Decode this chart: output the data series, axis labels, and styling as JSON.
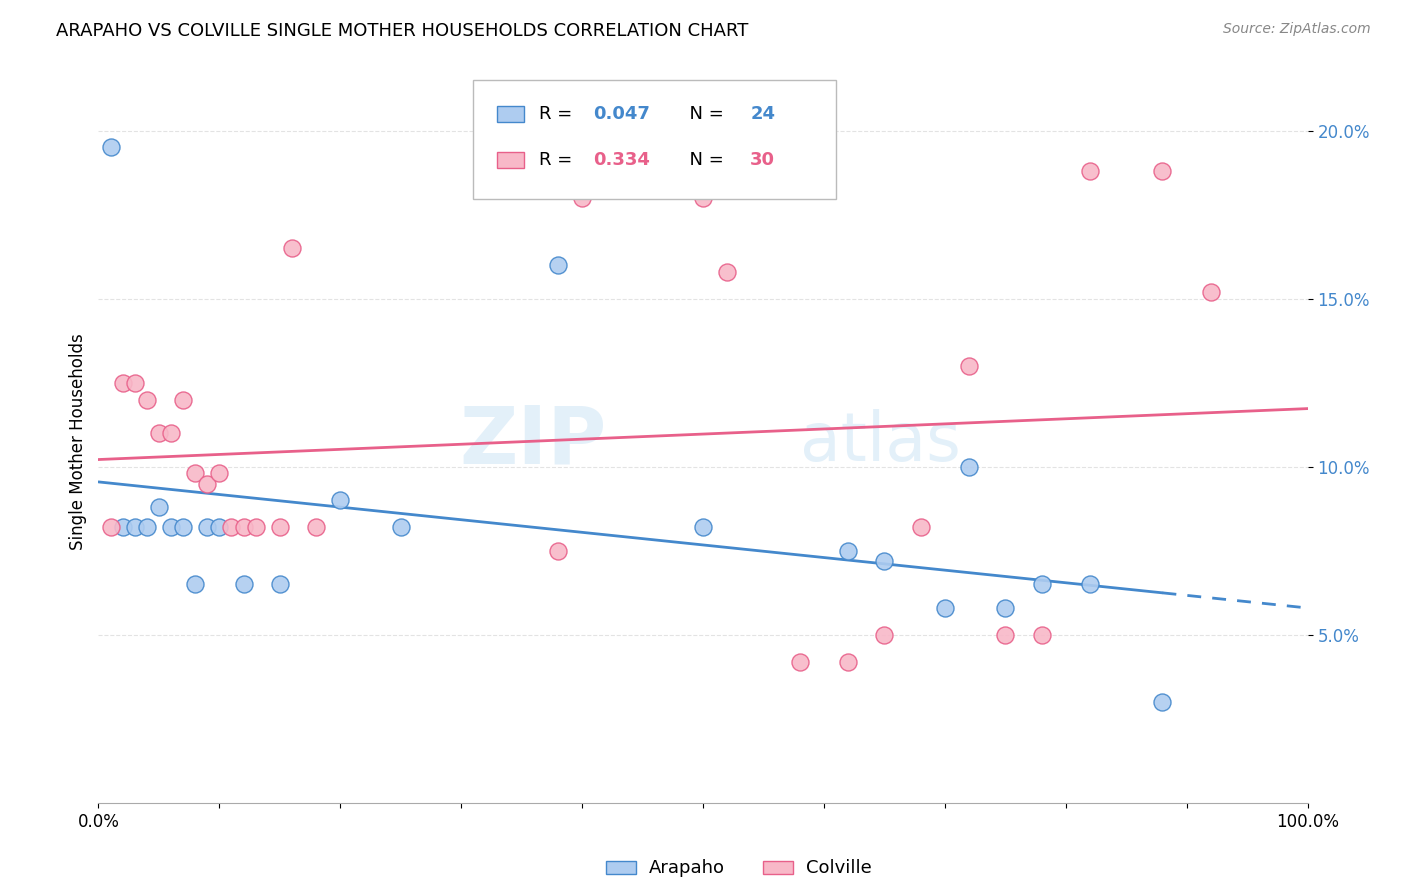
{
  "title": "ARAPAHO VS COLVILLE SINGLE MOTHER HOUSEHOLDS CORRELATION CHART",
  "source": "Source: ZipAtlas.com",
  "ylabel": "Single Mother Households",
  "legend_label_arapaho": "Arapaho",
  "legend_label_colville": "Colville",
  "arapaho_color": "#aeccf0",
  "colville_color": "#f8b8c8",
  "arapaho_line_color": "#4488cc",
  "colville_line_color": "#e8608a",
  "watermark_zip": "ZIP",
  "watermark_atlas": "atlas",
  "arapaho_x": [
    0.01,
    0.02,
    0.03,
    0.04,
    0.05,
    0.06,
    0.07,
    0.08,
    0.09,
    0.1,
    0.12,
    0.15,
    0.2,
    0.25,
    0.38,
    0.5,
    0.62,
    0.65,
    0.7,
    0.72,
    0.75,
    0.78,
    0.82,
    0.88
  ],
  "arapaho_y": [
    0.195,
    0.082,
    0.082,
    0.082,
    0.088,
    0.082,
    0.082,
    0.065,
    0.082,
    0.082,
    0.065,
    0.065,
    0.09,
    0.082,
    0.16,
    0.082,
    0.075,
    0.072,
    0.058,
    0.1,
    0.058,
    0.065,
    0.065,
    0.03
  ],
  "colville_x": [
    0.01,
    0.02,
    0.03,
    0.04,
    0.05,
    0.06,
    0.07,
    0.08,
    0.09,
    0.1,
    0.11,
    0.12,
    0.13,
    0.15,
    0.16,
    0.18,
    0.38,
    0.4,
    0.5,
    0.52,
    0.58,
    0.62,
    0.65,
    0.68,
    0.72,
    0.75,
    0.78,
    0.82,
    0.88,
    0.92
  ],
  "colville_y": [
    0.082,
    0.125,
    0.125,
    0.12,
    0.11,
    0.11,
    0.12,
    0.098,
    0.095,
    0.098,
    0.082,
    0.082,
    0.082,
    0.082,
    0.165,
    0.082,
    0.075,
    0.18,
    0.18,
    0.158,
    0.042,
    0.042,
    0.05,
    0.082,
    0.13,
    0.05,
    0.05,
    0.188,
    0.188,
    0.152
  ],
  "xlim": [
    0,
    1.0
  ],
  "ylim": [
    0,
    0.215
  ],
  "yticks": [
    0.05,
    0.1,
    0.15,
    0.2
  ],
  "ytick_labels": [
    "5.0%",
    "10.0%",
    "15.0%",
    "20.0%"
  ],
  "xticks": [
    0.0,
    0.1,
    0.2,
    0.3,
    0.4,
    0.5,
    0.6,
    0.7,
    0.8,
    0.9,
    1.0
  ],
  "xtick_labels_show": [
    "0.0%",
    "100.0%"
  ],
  "background_color": "#ffffff",
  "grid_color": "#dddddd"
}
